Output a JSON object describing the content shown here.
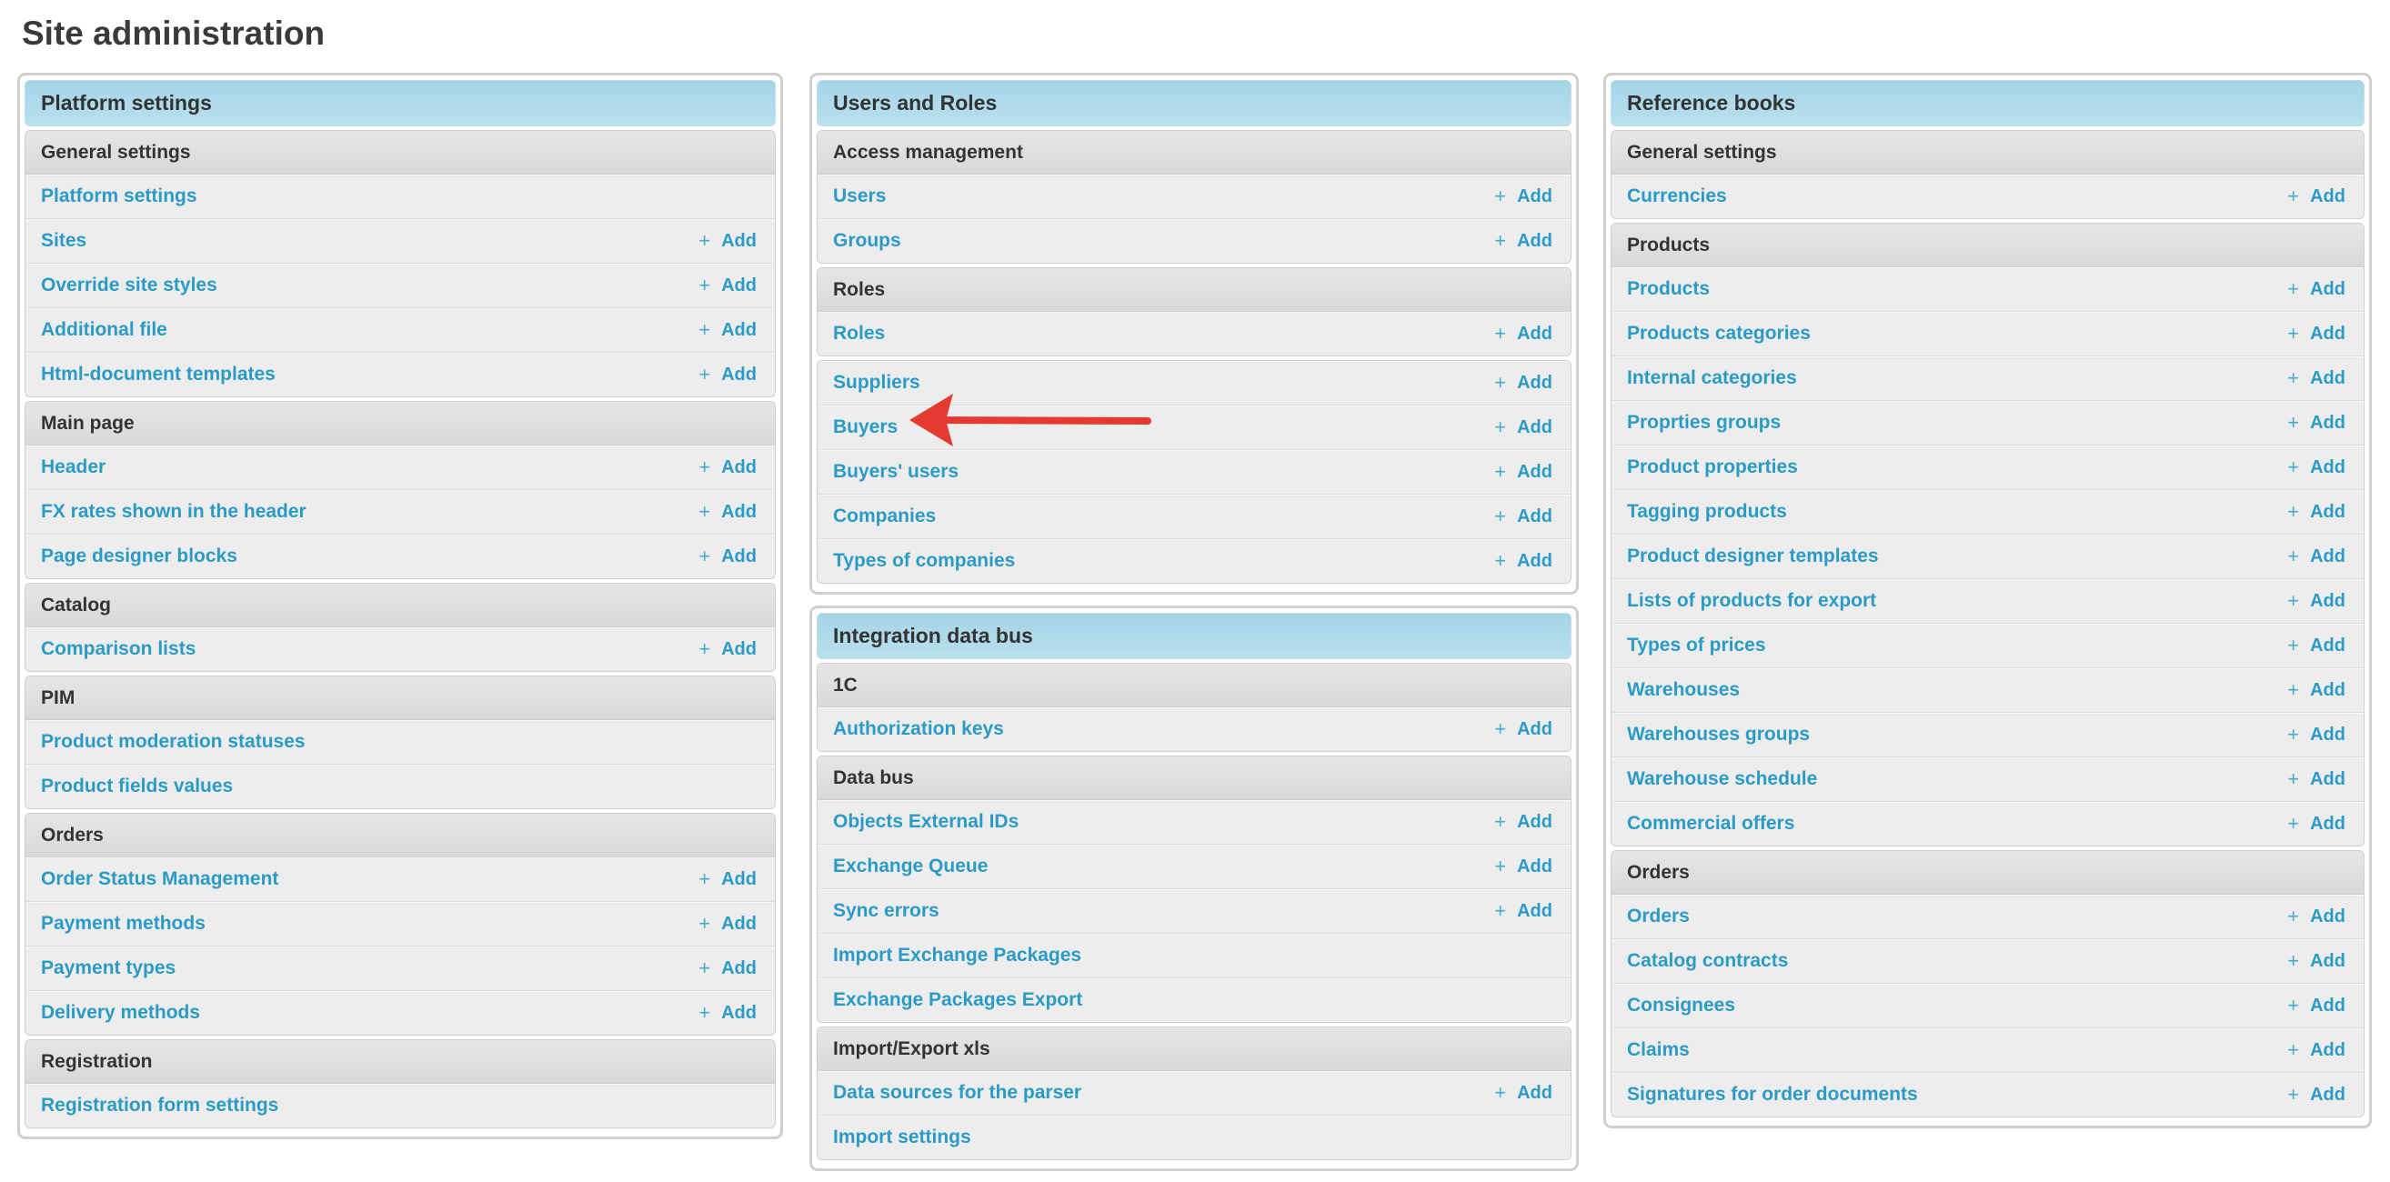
{
  "page_title": "Site administration",
  "add_label": "Add",
  "colors": {
    "link": "#2b9bc5",
    "panel_header": "#a5d4e6",
    "annotation_arrow": "#e43a31"
  },
  "annotation": {
    "type": "arrow",
    "points_to": "Buyers"
  },
  "columns": [
    {
      "panels": [
        {
          "title": "Platform settings",
          "groups": [
            {
              "title": "General settings",
              "items": [
                {
                  "label": "Platform settings",
                  "add": false
                },
                {
                  "label": "Sites",
                  "add": true
                },
                {
                  "label": "Override site styles",
                  "add": true
                },
                {
                  "label": "Additional file",
                  "add": true
                },
                {
                  "label": "Html-document templates",
                  "add": true
                }
              ]
            },
            {
              "title": "Main page",
              "items": [
                {
                  "label": "Header",
                  "add": true
                },
                {
                  "label": "FX rates shown in the header",
                  "add": true
                },
                {
                  "label": "Page designer blocks",
                  "add": true
                }
              ]
            },
            {
              "title": "Catalog",
              "items": [
                {
                  "label": "Comparison lists",
                  "add": true
                }
              ]
            },
            {
              "title": "PIM",
              "items": [
                {
                  "label": "Product moderation statuses",
                  "add": false
                },
                {
                  "label": "Product fields values",
                  "add": false
                }
              ]
            },
            {
              "title": "Orders",
              "items": [
                {
                  "label": "Order Status Management",
                  "add": true
                },
                {
                  "label": "Payment methods",
                  "add": true
                },
                {
                  "label": "Payment types",
                  "add": true
                },
                {
                  "label": "Delivery methods",
                  "add": true
                }
              ]
            },
            {
              "title": "Registration",
              "items": [
                {
                  "label": "Registration form settings",
                  "add": false
                }
              ]
            }
          ]
        }
      ]
    },
    {
      "panels": [
        {
          "title": "Users and Roles",
          "groups": [
            {
              "title": "Access management",
              "items": [
                {
                  "label": "Users",
                  "add": true
                },
                {
                  "label": "Groups",
                  "add": true
                }
              ]
            },
            {
              "title": "Roles",
              "items": [
                {
                  "label": "Roles",
                  "add": true
                }
              ]
            },
            {
              "title": "",
              "items": [
                {
                  "label": "Suppliers",
                  "add": true
                },
                {
                  "label": "Buyers",
                  "add": true
                },
                {
                  "label": "Buyers' users",
                  "add": true
                },
                {
                  "label": "Companies",
                  "add": true
                },
                {
                  "label": "Types of companies",
                  "add": true
                }
              ]
            }
          ]
        },
        {
          "title": "Integration data bus",
          "groups": [
            {
              "title": "1C",
              "items": [
                {
                  "label": "Authorization keys",
                  "add": true
                }
              ]
            },
            {
              "title": "Data bus",
              "items": [
                {
                  "label": "Objects External IDs",
                  "add": true
                },
                {
                  "label": "Exchange Queue",
                  "add": true
                },
                {
                  "label": "Sync errors",
                  "add": true
                },
                {
                  "label": "Import Exchange Packages",
                  "add": false
                },
                {
                  "label": "Exchange Packages Export",
                  "add": false
                }
              ]
            },
            {
              "title": "Import/Export xls",
              "items": [
                {
                  "label": "Data sources for the parser",
                  "add": true
                },
                {
                  "label": "Import settings",
                  "add": false
                }
              ]
            }
          ]
        }
      ]
    },
    {
      "panels": [
        {
          "title": "Reference books",
          "groups": [
            {
              "title": "General settings",
              "items": [
                {
                  "label": "Currencies",
                  "add": true
                }
              ]
            },
            {
              "title": "Products",
              "items": [
                {
                  "label": "Products",
                  "add": true
                },
                {
                  "label": "Products categories",
                  "add": true
                },
                {
                  "label": "Internal categories",
                  "add": true
                },
                {
                  "label": "Proprties groups",
                  "add": true
                },
                {
                  "label": "Product properties",
                  "add": true
                },
                {
                  "label": "Tagging products",
                  "add": true
                },
                {
                  "label": "Product designer templates",
                  "add": true
                },
                {
                  "label": "Lists of products for export",
                  "add": true
                },
                {
                  "label": "Types of prices",
                  "add": true
                },
                {
                  "label": "Warehouses",
                  "add": true
                },
                {
                  "label": "Warehouses groups",
                  "add": true
                },
                {
                  "label": "Warehouse schedule",
                  "add": true
                },
                {
                  "label": "Commercial offers",
                  "add": true
                }
              ]
            },
            {
              "title": "Orders",
              "items": [
                {
                  "label": "Orders",
                  "add": true
                },
                {
                  "label": "Catalog contracts",
                  "add": true
                },
                {
                  "label": "Consignees",
                  "add": true
                },
                {
                  "label": "Claims",
                  "add": true
                },
                {
                  "label": "Signatures for order documents",
                  "add": true
                }
              ]
            }
          ]
        }
      ]
    }
  ]
}
